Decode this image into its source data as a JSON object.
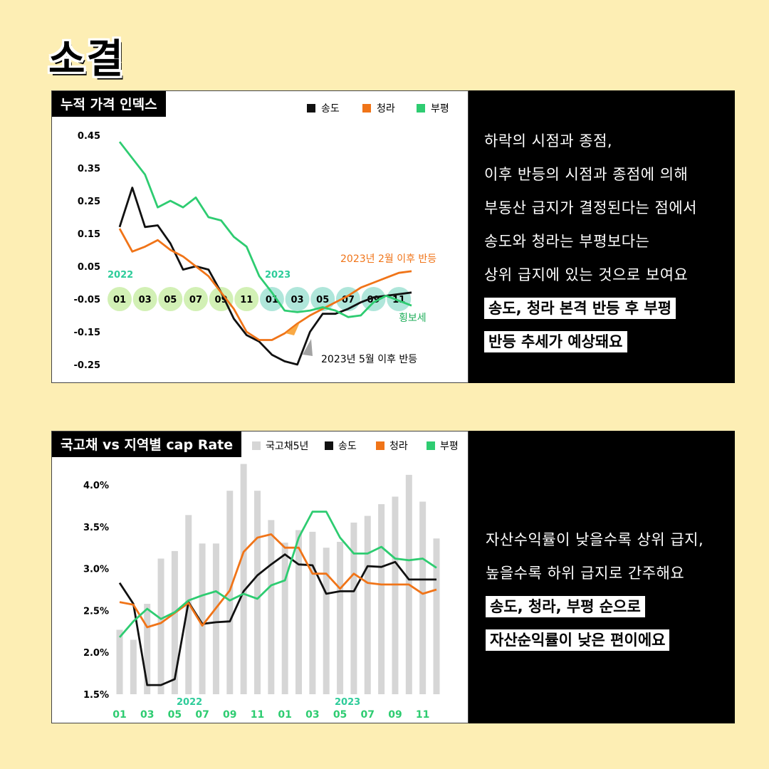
{
  "page": {
    "title": "소결"
  },
  "colors": {
    "songdo": "#111111",
    "cheongna": "#f07418",
    "bupyeong": "#2ecc71",
    "bond": "#d6d6d6",
    "background": "#fdeeb4"
  },
  "panel1": {
    "title": "누적 가격 인덱스",
    "legend": [
      "송도",
      "청라",
      "부평"
    ],
    "year_labels": [
      "2022",
      "2023"
    ],
    "annotations": {
      "cheongna": "2023년 2월 이후 반등",
      "songdo": "2023년 5월 이후 반등",
      "bupyeong": "횡보세"
    }
  },
  "panel2": {
    "title": "국고채 vs 지역별 cap Rate",
    "legend": [
      "국고채5년",
      "송도",
      "청라",
      "부평"
    ],
    "year_labels": [
      "2022",
      "2023"
    ]
  },
  "text1": {
    "lines": [
      "하락의 시점과 종점,",
      "이후 반등의 시점과 종점에 의해",
      "부동산 급지가 결정된다는 점에서",
      "송도와 청라는 부평보다는",
      "상위 급지에 있는 것으로 보여요"
    ],
    "highlights": [
      "송도, 청라 본격 반등 후 부평",
      "반등 추세가 예상돼요"
    ]
  },
  "text2": {
    "lines": [
      "자산수익률이 낮을수록 상위 급지,",
      "높을수록 하위 급지로 간주해요"
    ],
    "highlights": [
      "송도, 청라, 부평 순으로",
      "자산순익률이 낮은 편이에요"
    ]
  },
  "chart_data": [
    {
      "type": "line",
      "title": "누적 가격 인덱스",
      "x": [
        "2022-01",
        "2022-02",
        "2022-03",
        "2022-04",
        "2022-05",
        "2022-06",
        "2022-07",
        "2022-08",
        "2022-09",
        "2022-10",
        "2022-11",
        "2022-12",
        "2023-01",
        "2023-02",
        "2023-03",
        "2023-04",
        "2023-05",
        "2023-06",
        "2023-07",
        "2023-08",
        "2023-09",
        "2023-10",
        "2023-11",
        "2023-12"
      ],
      "x_tick_labels": [
        "01",
        "03",
        "05",
        "07",
        "09",
        "11",
        "01",
        "03",
        "05",
        "07",
        "09",
        "11"
      ],
      "yticks": [
        0.45,
        0.35,
        0.25,
        0.15,
        0.05,
        -0.05,
        -0.15,
        -0.25
      ],
      "ylim": [
        -0.27,
        0.47
      ],
      "series": [
        {
          "name": "송도",
          "values": [
            0.17,
            0.29,
            0.17,
            0.175,
            0.12,
            0.04,
            0.05,
            0.04,
            -0.03,
            -0.11,
            -0.16,
            -0.18,
            -0.22,
            -0.24,
            -0.25,
            -0.15,
            -0.095,
            -0.095,
            -0.08,
            -0.06,
            -0.045,
            -0.04,
            -0.035,
            -0.03
          ]
        },
        {
          "name": "청라",
          "values": [
            0.165,
            0.095,
            0.11,
            0.13,
            0.1,
            0.08,
            0.05,
            0.02,
            -0.03,
            -0.08,
            -0.15,
            -0.175,
            -0.175,
            -0.155,
            -0.125,
            -0.1,
            -0.08,
            -0.06,
            -0.04,
            -0.015,
            0.0,
            0.015,
            0.03,
            0.035
          ]
        },
        {
          "name": "부평",
          "values": [
            0.43,
            0.38,
            0.33,
            0.23,
            0.25,
            0.23,
            0.26,
            0.2,
            0.19,
            0.14,
            0.11,
            0.02,
            -0.03,
            -0.085,
            -0.09,
            -0.085,
            -0.075,
            -0.085,
            -0.105,
            -0.1,
            -0.06,
            -0.04,
            -0.055,
            -0.07
          ]
        }
      ]
    },
    {
      "type": "bar+line",
      "title": "국고채 vs 지역별 cap Rate",
      "x": [
        "2022-01",
        "2022-02",
        "2022-03",
        "2022-04",
        "2022-05",
        "2022-06",
        "2022-07",
        "2022-08",
        "2022-09",
        "2022-10",
        "2022-11",
        "2022-12",
        "2023-01",
        "2023-02",
        "2023-03",
        "2023-04",
        "2023-05",
        "2023-06",
        "2023-07",
        "2023-08",
        "2023-09",
        "2023-10",
        "2023-11",
        "2023-12"
      ],
      "x_tick_labels": [
        "01",
        "03",
        "05",
        "07",
        "09",
        "11",
        "01",
        "03",
        "05",
        "07",
        "09",
        "11"
      ],
      "yticks": [
        "4.0%",
        "3.5%",
        "3.0%",
        "2.5%",
        "2.0%",
        "1.5%"
      ],
      "ylim": [
        1.5,
        4.3
      ],
      "series": [
        {
          "name": "국고채5년",
          "kind": "bar",
          "values": [
            2.27,
            2.15,
            2.58,
            3.12,
            3.21,
            3.64,
            3.3,
            3.3,
            3.93,
            4.25,
            3.93,
            3.58,
            3.31,
            3.46,
            3.44,
            3.25,
            3.32,
            3.55,
            3.63,
            3.77,
            3.86,
            4.12,
            3.8,
            3.36
          ]
        },
        {
          "name": "송도",
          "kind": "line",
          "values": [
            2.83,
            2.58,
            1.61,
            1.61,
            1.68,
            2.6,
            2.34,
            2.36,
            2.37,
            2.73,
            2.92,
            3.05,
            3.17,
            3.05,
            3.04,
            2.7,
            2.73,
            2.73,
            3.03,
            3.02,
            3.08,
            2.87,
            2.87,
            2.87
          ]
        },
        {
          "name": "청라",
          "kind": "line",
          "values": [
            2.6,
            2.57,
            2.3,
            2.35,
            2.47,
            2.59,
            2.32,
            2.53,
            2.74,
            3.2,
            3.37,
            3.41,
            3.25,
            3.25,
            2.94,
            2.94,
            2.76,
            2.94,
            2.83,
            2.81,
            2.81,
            2.81,
            2.7,
            2.75
          ]
        },
        {
          "name": "부평",
          "kind": "line",
          "values": [
            2.18,
            2.37,
            2.52,
            2.4,
            2.48,
            2.62,
            2.68,
            2.73,
            2.62,
            2.7,
            2.64,
            2.8,
            2.86,
            3.37,
            3.68,
            3.68,
            3.37,
            3.18,
            3.18,
            3.26,
            3.12,
            3.1,
            3.12,
            3.01
          ]
        }
      ]
    }
  ]
}
